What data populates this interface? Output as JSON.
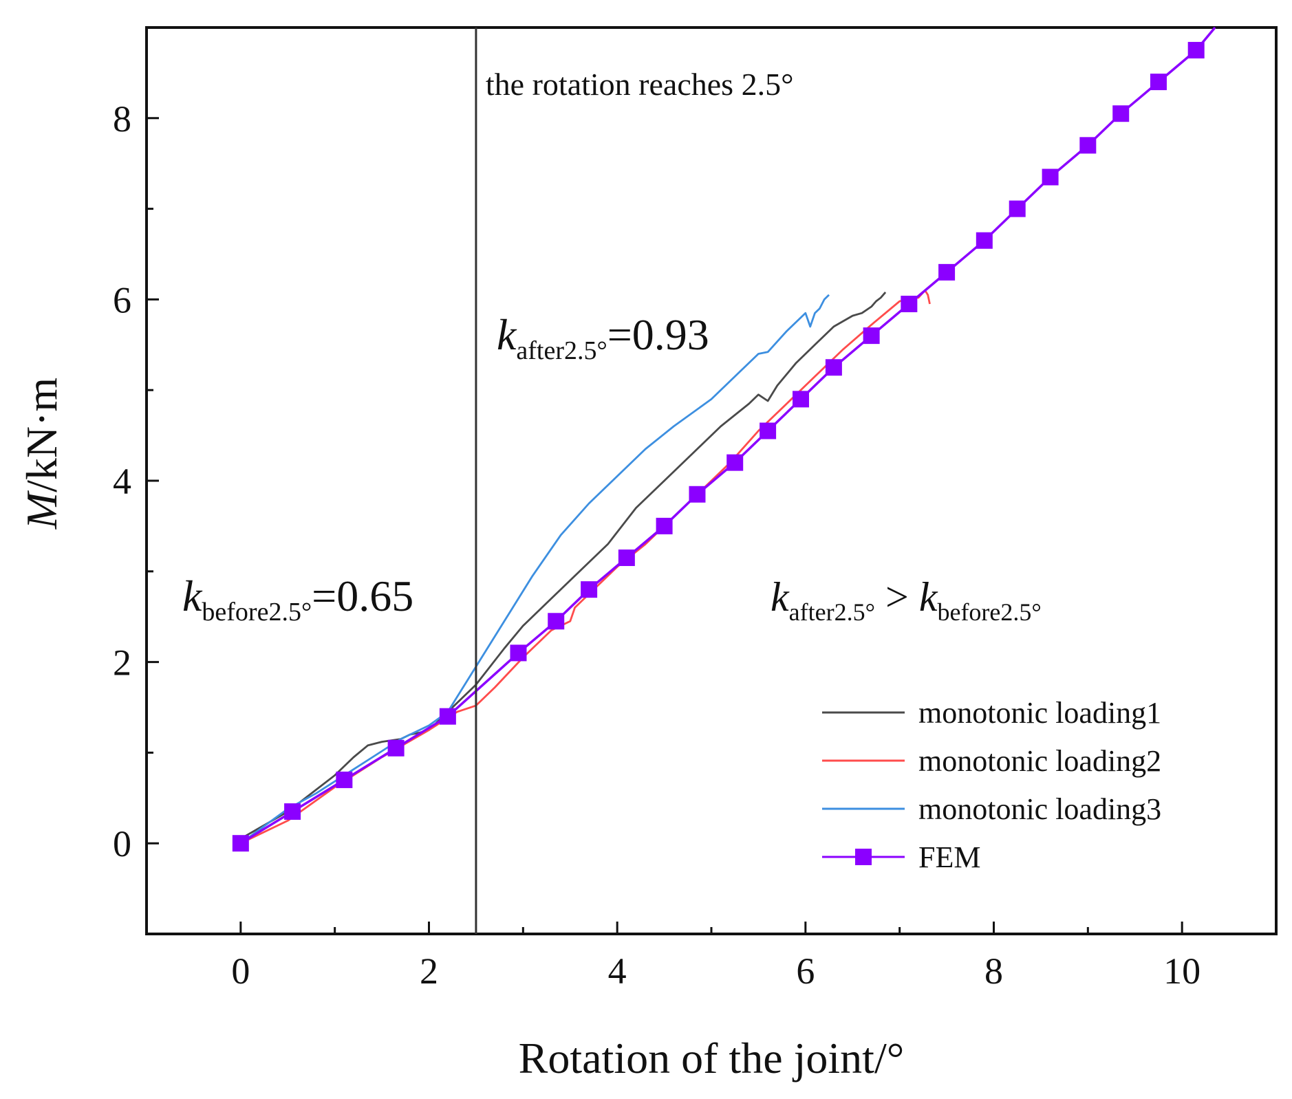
{
  "chart_data": {
    "type": "line",
    "title": "",
    "xlabel": "Rotation of the joint/°",
    "ylabel_italic": "M",
    "ylabel_rest": "/kN·m",
    "xlim": [
      -1.0,
      11.0
    ],
    "ylim": [
      -1.0,
      9.0
    ],
    "xticks": [
      0,
      2,
      4,
      6,
      8,
      10
    ],
    "yticks": [
      0,
      2,
      4,
      6,
      8
    ],
    "xtick_labels": [
      "0",
      "2",
      "4",
      "6",
      "8",
      "10"
    ],
    "ytick_labels": [
      "0",
      "2",
      "4",
      "6",
      "8"
    ],
    "grid": false,
    "legend_position": "bottom-right",
    "vline": {
      "x": 2.5,
      "label": "the rotation reaches 2.5°"
    },
    "annotations": {
      "k_after": {
        "k": "k",
        "sub": "after2.5°",
        "rest": "=0.93"
      },
      "k_before": {
        "k": "k",
        "sub": "before2.5°",
        "rest": "=0.65"
      },
      "k_compare": {
        "k1": "k",
        "sub1": "after2.5°",
        "op": " > ",
        "k2": "k",
        "sub2": "before2.5°"
      }
    },
    "series": [
      {
        "name": "monotonic loading1",
        "color": "#4a4a4a",
        "marker": "none",
        "x": [
          0,
          0.5,
          1.0,
          1.2,
          1.35,
          1.5,
          1.7,
          1.8,
          1.9,
          2.0,
          2.2,
          2.5,
          2.8,
          3.0,
          3.3,
          3.6,
          3.9,
          4.2,
          4.5,
          4.8,
          5.1,
          5.4,
          5.5,
          5.6,
          5.7,
          5.9,
          6.1,
          6.3,
          6.5,
          6.6,
          6.7,
          6.75,
          6.8,
          6.85
        ],
        "y": [
          0.05,
          0.35,
          0.75,
          0.95,
          1.08,
          1.12,
          1.15,
          1.2,
          1.22,
          1.25,
          1.45,
          1.75,
          2.15,
          2.4,
          2.7,
          3.0,
          3.3,
          3.7,
          4.0,
          4.3,
          4.6,
          4.85,
          4.95,
          4.88,
          5.05,
          5.3,
          5.5,
          5.7,
          5.82,
          5.85,
          5.92,
          5.98,
          6.02,
          6.08
        ]
      },
      {
        "name": "monotonic loading2",
        "color": "#ff4c4c",
        "marker": "none",
        "x": [
          0,
          0.5,
          1.0,
          1.5,
          2.0,
          2.3,
          2.5,
          2.7,
          3.0,
          3.3,
          3.5,
          3.55,
          3.7,
          4.0,
          4.3,
          4.6,
          4.9,
          5.2,
          5.5,
          5.8,
          6.1,
          6.4,
          6.7,
          7.0,
          7.2,
          7.27,
          7.3,
          7.32
        ],
        "y": [
          0.0,
          0.25,
          0.62,
          0.95,
          1.25,
          1.45,
          1.52,
          1.72,
          2.05,
          2.35,
          2.45,
          2.6,
          2.75,
          3.05,
          3.3,
          3.6,
          3.9,
          4.2,
          4.55,
          4.85,
          5.15,
          5.45,
          5.72,
          5.98,
          6.02,
          6.1,
          6.05,
          5.95
        ]
      },
      {
        "name": "monotonic loading3",
        "color": "#3d8fe0",
        "marker": "none",
        "x": [
          0,
          0.5,
          0.8,
          1.1,
          1.4,
          1.7,
          2.0,
          2.2,
          2.5,
          2.8,
          3.1,
          3.4,
          3.7,
          4.0,
          4.3,
          4.6,
          5.0,
          5.3,
          5.5,
          5.6,
          5.8,
          6.0,
          6.05,
          6.1,
          6.15,
          6.2,
          6.25
        ],
        "y": [
          0.0,
          0.38,
          0.55,
          0.75,
          0.95,
          1.15,
          1.3,
          1.45,
          1.95,
          2.45,
          2.95,
          3.4,
          3.75,
          4.05,
          4.35,
          4.6,
          4.9,
          5.2,
          5.4,
          5.42,
          5.65,
          5.85,
          5.7,
          5.85,
          5.9,
          6.0,
          6.05
        ]
      },
      {
        "name": "FEM",
        "color": "#8b00ff",
        "marker": "square",
        "x": [
          0,
          0.55,
          1.1,
          1.65,
          2.2,
          2.95,
          3.35,
          3.7,
          4.1,
          4.5,
          4.85,
          5.25,
          5.6,
          5.95,
          6.3,
          6.7,
          7.1,
          7.5,
          7.9,
          8.25,
          8.6,
          9.0,
          9.35,
          9.75,
          10.15,
          10.35
        ],
        "y": [
          0.0,
          0.35,
          0.7,
          1.05,
          1.4,
          2.1,
          2.45,
          2.8,
          3.15,
          3.5,
          3.85,
          4.2,
          4.55,
          4.9,
          5.25,
          5.6,
          5.95,
          6.3,
          6.65,
          7.0,
          7.35,
          7.7,
          8.05,
          8.4,
          8.75,
          9.0
        ],
        "marker_count": 25
      }
    ]
  }
}
